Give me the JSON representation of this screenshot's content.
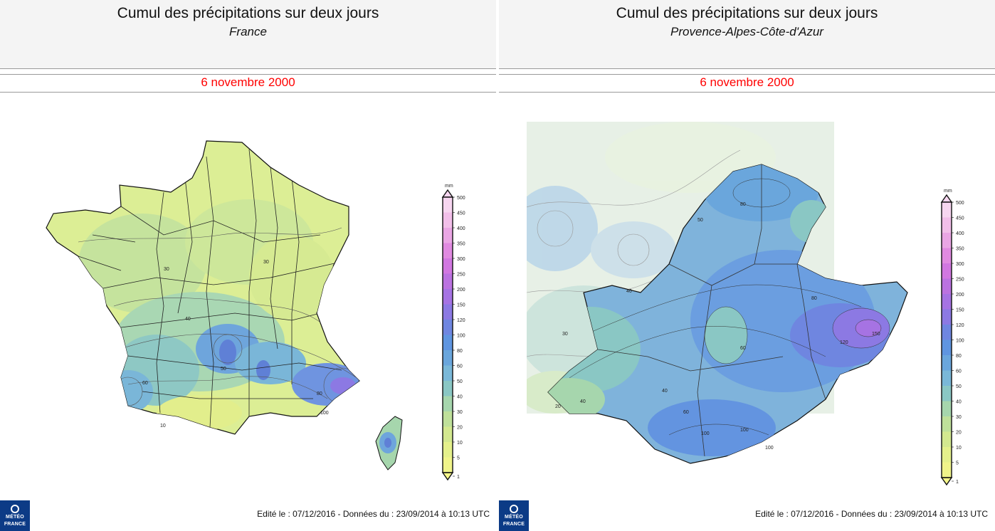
{
  "panels": [
    {
      "title": "Cumul des précipitations sur deux jours",
      "region": "France",
      "date": "6 novembre 2000",
      "footer": "Edité le : 07/12/2016 - Données du : 23/09/2014 à 10:13 UTC",
      "logo_lines": [
        "MÉTÉO",
        "FRANCE"
      ],
      "contour_labels": [
        "30",
        "30",
        "40",
        "50",
        "60",
        "80",
        "100",
        "10"
      ]
    },
    {
      "title": "Cumul des précipitations sur deux jours",
      "region": "Provence-Alpes-Côte-d'Azur",
      "date": "6 novembre 2000",
      "footer": "Edité le : 07/12/2016 - Données du : 23/09/2014 à 10:13 UTC",
      "logo_lines": [
        "MÉTÉO",
        "FRANCE"
      ],
      "contour_labels": [
        "30",
        "40",
        "50",
        "60",
        "80",
        "80",
        "100",
        "100",
        "120",
        "150",
        "40",
        "20",
        "40",
        "60",
        "100"
      ]
    }
  ],
  "legend": {
    "unit": "mm",
    "levels": [
      "500",
      "450",
      "400",
      "350",
      "300",
      "250",
      "200",
      "150",
      "120",
      "100",
      "80",
      "60",
      "50",
      "40",
      "30",
      "20",
      "10",
      "5",
      "1"
    ],
    "colors": [
      "#f7d6f0",
      "#f2bfe9",
      "#eaa6e4",
      "#e08ae0",
      "#d177e0",
      "#bb72e0",
      "#a673e3",
      "#8c79e3",
      "#6f86e0",
      "#5f95e0",
      "#6aa6dc",
      "#7ab8d8",
      "#8ac7c4",
      "#a6d6ad",
      "#bfe09a",
      "#d3e88f",
      "#e4f08b",
      "#f0f48a",
      "#f6f78a"
    ]
  },
  "colors": {
    "date_red": "#ff0000",
    "logo_blue": "#0c3b86"
  }
}
